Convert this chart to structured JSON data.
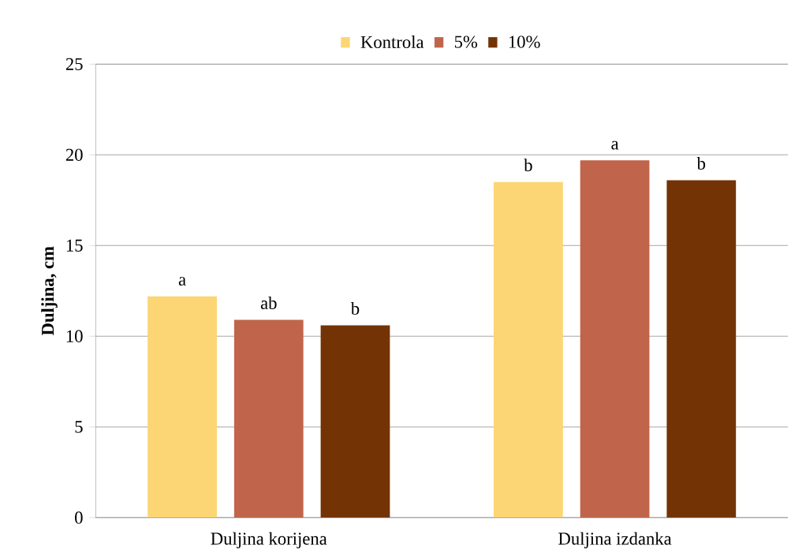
{
  "chart_data": {
    "type": "bar",
    "ylabel": "Duljina, cm",
    "categories": [
      "Duljina korijena",
      "Duljina izdanka"
    ],
    "series": [
      {
        "name": "Kontrola",
        "color": "#fcd574",
        "values": [
          12.2,
          18.5
        ]
      },
      {
        "name": "5%",
        "color": "#c0654b",
        "values": [
          10.9,
          19.7
        ]
      },
      {
        "name": "10%",
        "color": "#743305",
        "values": [
          10.6,
          18.6
        ]
      }
    ],
    "ylim": [
      0,
      25
    ],
    "yticks": [
      0,
      5,
      10,
      15,
      20,
      25
    ],
    "grid": "y",
    "legend": "top",
    "annotations": [
      "a",
      "ab",
      "b",
      "b",
      "a",
      "b"
    ]
  }
}
